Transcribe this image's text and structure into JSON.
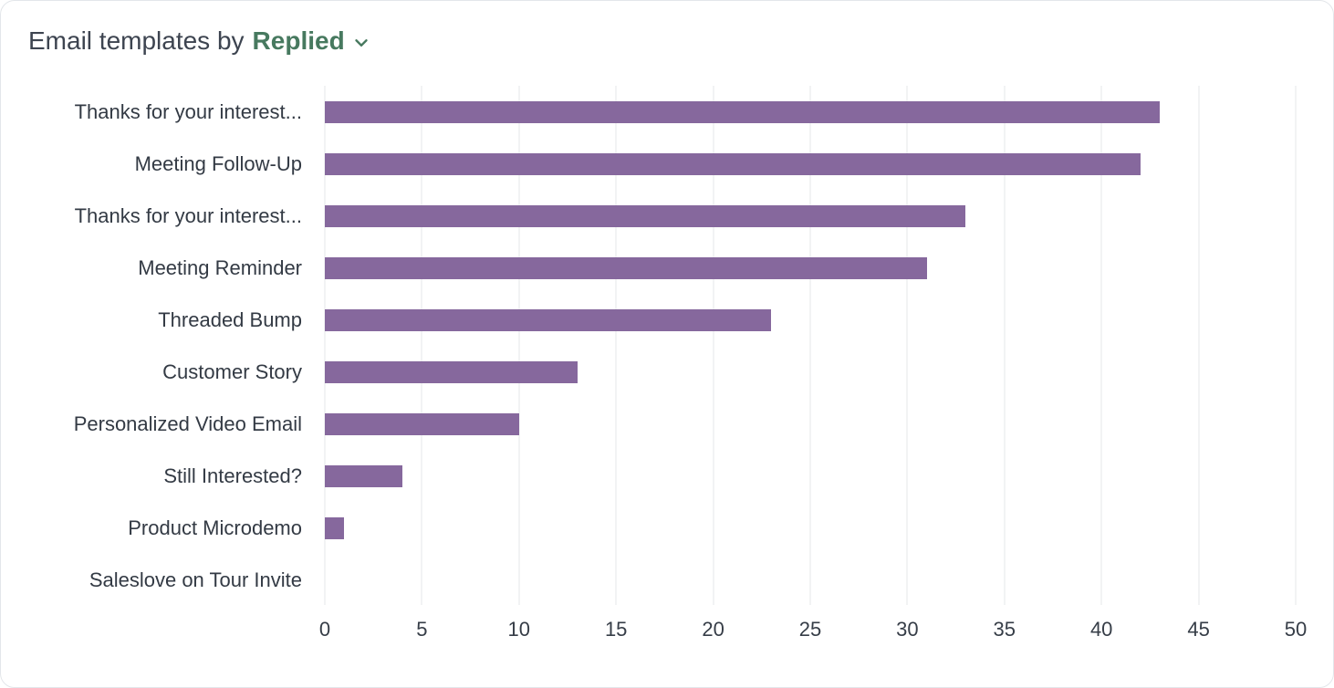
{
  "card": {
    "title_prefix": "Email templates by",
    "metric_selector": {
      "label": "Replied",
      "icon": "chevron-down-icon"
    }
  },
  "chart_data": {
    "type": "bar",
    "orientation": "horizontal",
    "title": "Email templates by Replied",
    "categories": [
      "Thanks for your interest...",
      "Meeting Follow-Up",
      "Thanks for your interest...",
      "Meeting Reminder",
      "Threaded Bump",
      "Customer Story",
      "Personalized Video Email",
      "Still Interested?",
      "Product Microdemo",
      "Saleslove on Tour Invite"
    ],
    "values": [
      43,
      42,
      33,
      31,
      23,
      13,
      10,
      4,
      1,
      0
    ],
    "xlabel": "",
    "ylabel": "",
    "xlim": [
      0,
      50
    ],
    "x_ticks": [
      0,
      5,
      10,
      15,
      20,
      25,
      30,
      35,
      40,
      45,
      50
    ],
    "grid": "vertical",
    "legend": "none"
  },
  "colors": {
    "bar": "#86689d",
    "accent_green": "#47795f",
    "title_text": "#3d4450",
    "label_text": "#333a44",
    "gridline": "#f2f3f4",
    "card_border": "#e3e6ea",
    "card_bg": "#ffffff"
  }
}
